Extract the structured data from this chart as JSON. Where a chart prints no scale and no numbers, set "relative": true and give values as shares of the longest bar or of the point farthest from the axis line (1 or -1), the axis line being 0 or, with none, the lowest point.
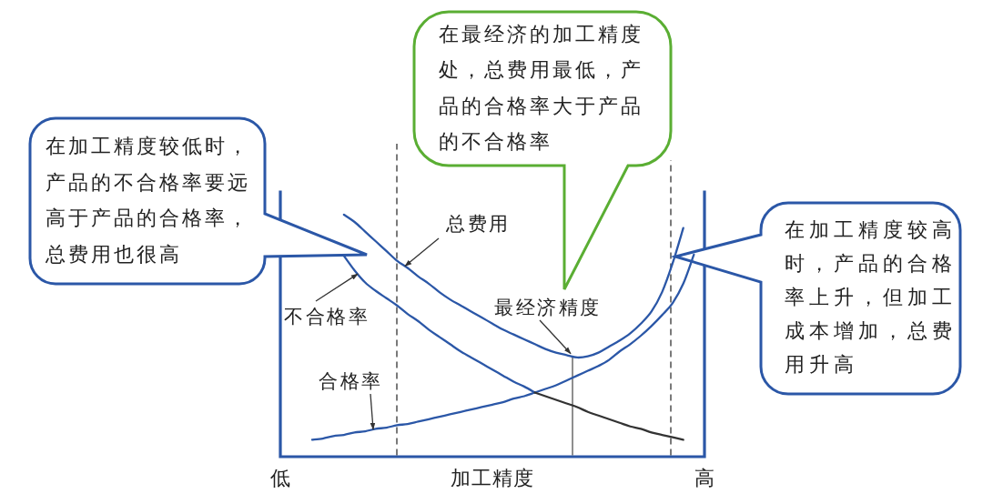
{
  "chart_data": {
    "type": "line",
    "relative": true,
    "xlabel": "加工精度",
    "tick_labels": "x",
    "categories": [
      "低",
      null,
      null,
      null,
      null,
      null,
      null,
      null,
      null,
      null,
      null,
      null,
      null,
      null,
      null,
      null,
      null,
      null,
      null,
      null,
      null,
      null,
      null,
      null,
      null,
      null,
      null,
      null,
      null,
      null,
      null,
      null,
      null,
      null,
      null,
      null,
      null,
      null,
      null,
      null,
      "高"
    ],
    "series": [
      {
        "name": "总费用",
        "color": "#2b57a7",
        "values": [
          null,
          null,
          null,
          null,
          null,
          null,
          1.0,
          0.97,
          0.93,
          0.89,
          0.85,
          0.81,
          0.78,
          0.745,
          0.715,
          0.68,
          0.65,
          0.625,
          0.6,
          0.575,
          0.55,
          0.525,
          0.505,
          0.485,
          0.465,
          0.445,
          0.43,
          0.42,
          0.41,
          0.415,
          0.43,
          0.455,
          0.48,
          0.51,
          0.55,
          0.6,
          0.68,
          0.8,
          0.945,
          null,
          null
        ]
      },
      {
        "name": "不合格率",
        "color": "#2b57a7",
        "values": [
          null,
          null,
          null,
          null,
          null,
          null,
          0.83,
          0.77,
          0.72,
          0.685,
          0.655,
          0.625,
          0.59,
          0.56,
          0.525,
          0.495,
          0.465,
          0.435,
          0.41,
          0.385,
          0.36,
          0.335,
          0.31,
          0.29,
          0.265,
          null,
          null,
          null,
          null,
          null,
          null,
          null,
          null,
          null,
          null,
          null,
          null,
          null,
          null,
          null,
          null
        ]
      },
      {
        "name": "合格率",
        "color": "#2b57a7",
        "values": [
          null,
          null,
          null,
          0.07,
          0.075,
          0.085,
          0.09,
          0.1,
          0.105,
          0.115,
          0.12,
          0.13,
          0.135,
          0.145,
          0.155,
          0.165,
          0.175,
          0.185,
          0.195,
          0.205,
          0.215,
          0.225,
          0.24,
          0.25,
          0.265,
          0.28,
          0.295,
          0.315,
          0.335,
          0.355,
          0.375,
          0.4,
          0.435,
          0.465,
          0.5,
          0.54,
          0.585,
          0.635,
          0.715,
          0.835,
          null
        ]
      },
      {
        "color": "#333333",
        "values": [
          null,
          null,
          null,
          null,
          null,
          null,
          null,
          null,
          null,
          null,
          null,
          null,
          null,
          null,
          null,
          null,
          null,
          null,
          null,
          null,
          null,
          null,
          null,
          null,
          0.265,
          0.25,
          0.235,
          0.22,
          0.205,
          0.185,
          0.17,
          0.155,
          0.14,
          0.125,
          0.115,
          0.1,
          0.09,
          0.08,
          0.07,
          null,
          null
        ]
      }
    ],
    "annotations": [
      "在加工精度较低时，产品的不合格率要远高于产品的合格率，总费用也很高",
      "在最经济的加工精度处，总费用最低，产品的合格率大于产品的不合格率",
      "在加工精度较高时，产品的合格率上升，但加工成本增加，总费用升高",
      "最经济精度"
    ]
  }
}
